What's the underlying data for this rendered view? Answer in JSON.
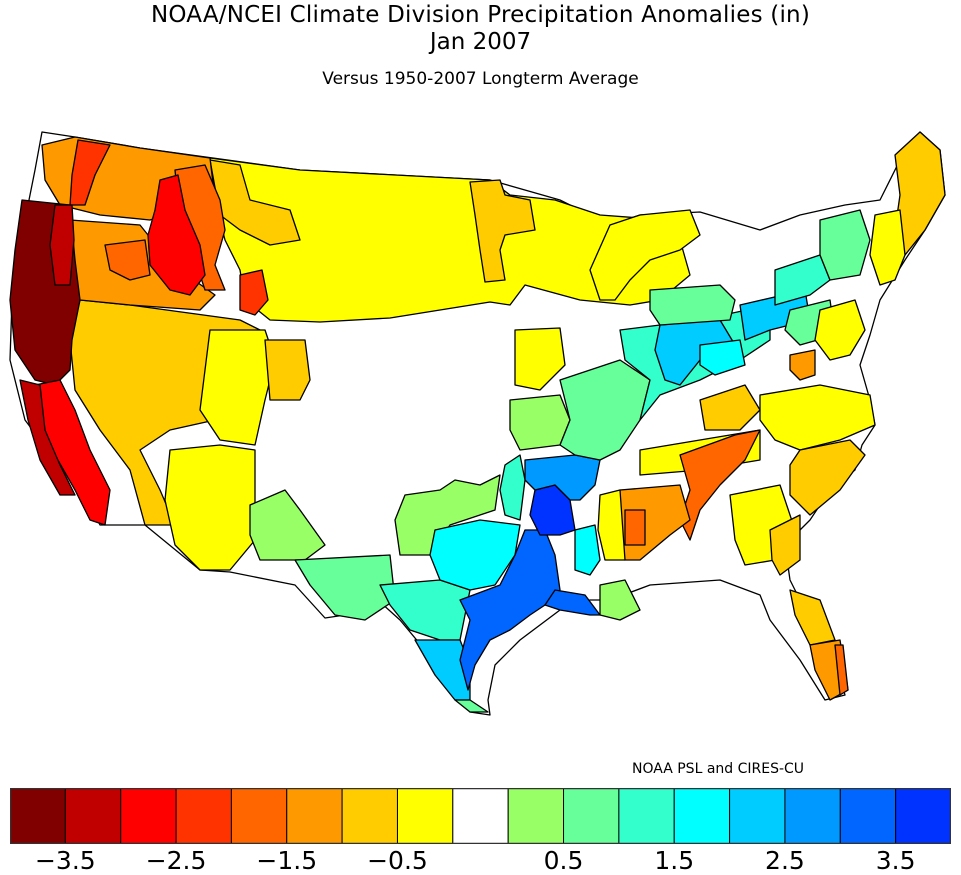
{
  "header": {
    "title_line1": "NOAA/NCEI Climate Division Precipitation Anomalies (in)",
    "title_line2": "Jan 2007",
    "subtitle": "Versus 1950-2007 Longterm Average"
  },
  "credit": "NOAA PSL and CIRES-CU",
  "legend": {
    "unit": "in",
    "bins": [
      {
        "min": null,
        "max": -3.5,
        "color": "#800000"
      },
      {
        "min": -3.5,
        "max": -3.0,
        "color": "#c00000"
      },
      {
        "min": -3.0,
        "max": -2.5,
        "color": "#ff0000"
      },
      {
        "min": -2.5,
        "max": -2.0,
        "color": "#ff3300"
      },
      {
        "min": -2.0,
        "max": -1.5,
        "color": "#ff6600"
      },
      {
        "min": -1.5,
        "max": -1.0,
        "color": "#ff9900"
      },
      {
        "min": -1.0,
        "max": -0.5,
        "color": "#ffcc00"
      },
      {
        "min": -0.5,
        "max": -0.25,
        "color": "#ffff00"
      },
      {
        "min": -0.25,
        "max": 0.25,
        "color": "#ffffff"
      },
      {
        "min": 0.25,
        "max": 0.5,
        "color": "#99ff66"
      },
      {
        "min": 0.5,
        "max": 1.0,
        "color": "#66ff99"
      },
      {
        "min": 1.0,
        "max": 1.5,
        "color": "#33ffcc"
      },
      {
        "min": 1.5,
        "max": 2.0,
        "color": "#00ffff"
      },
      {
        "min": 2.0,
        "max": 2.5,
        "color": "#00ccff"
      },
      {
        "min": 2.5,
        "max": 3.0,
        "color": "#0099ff"
      },
      {
        "min": 3.0,
        "max": 3.5,
        "color": "#0066ff"
      },
      {
        "min": 3.5,
        "max": null,
        "color": "#0033ff"
      }
    ],
    "tick_labels": [
      {
        "label": "−3.5",
        "boundary": 1
      },
      {
        "label": "−2.5",
        "boundary": 3
      },
      {
        "label": "−1.5",
        "boundary": 5
      },
      {
        "label": "−0.5",
        "boundary": 7
      },
      {
        "label": "0.5",
        "boundary": 10
      },
      {
        "label": "1.5",
        "boundary": 12
      },
      {
        "label": "2.5",
        "boundary": 14
      },
      {
        "label": "3.5",
        "boundary": 16
      }
    ]
  },
  "map": {
    "regions": [
      {
        "name": "Pacific Northwest coast",
        "bin": 0
      },
      {
        "name": "Northern California",
        "bin": 0
      },
      {
        "name": "Oregon interior",
        "bin": 1
      },
      {
        "name": "Central California",
        "bin": 2
      },
      {
        "name": "Central Idaho",
        "bin": 2
      },
      {
        "name": "Western Washington",
        "bin": 3
      },
      {
        "name": "Northern Idaho/Montana west",
        "bin": 4
      },
      {
        "name": "Southern California/Nevada",
        "bin": 5
      },
      {
        "name": "Eastern Oregon",
        "bin": 5
      },
      {
        "name": "Great Basin",
        "bin": 6
      },
      {
        "name": "Arizona/Utah",
        "bin": 7
      },
      {
        "name": "Northern Plains",
        "bin": 7
      },
      {
        "name": "Central Plains",
        "bin": 8
      },
      {
        "name": "West Texas",
        "bin": 9
      },
      {
        "name": "Ohio Valley",
        "bin": 10
      },
      {
        "name": "Central Texas",
        "bin": 11
      },
      {
        "name": "North Texas",
        "bin": 12
      },
      {
        "name": "Indiana/Ohio",
        "bin": 13
      },
      {
        "name": "Arkansas",
        "bin": 14
      },
      {
        "name": "East Texas",
        "bin": 15
      },
      {
        "name": "Louisiana/Arkansas",
        "bin": 16
      },
      {
        "name": "Tennessee/Alabama",
        "bin": 4
      },
      {
        "name": "Southeast",
        "bin": 6
      },
      {
        "name": "Florida south",
        "bin": 5
      },
      {
        "name": "New England",
        "bin": 6
      },
      {
        "name": "New York",
        "bin": 10
      }
    ]
  }
}
